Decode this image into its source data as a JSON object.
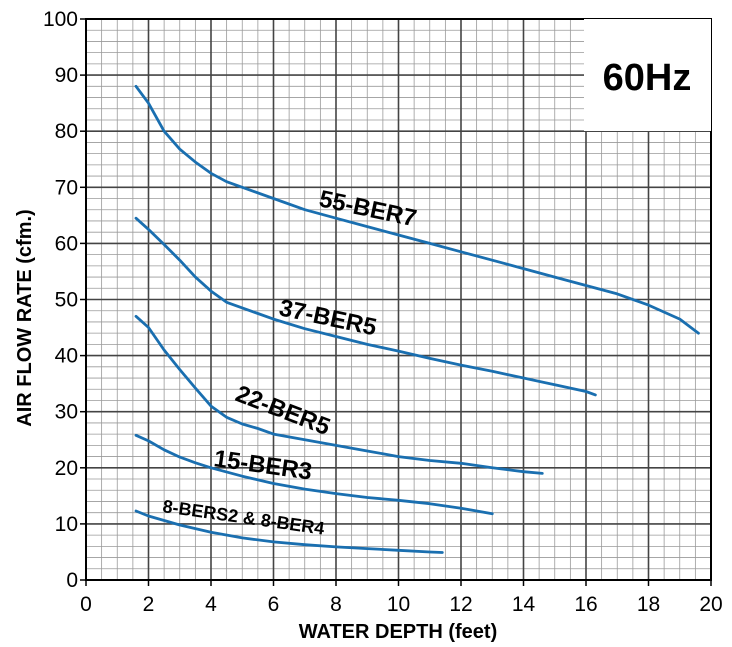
{
  "chart_data": {
    "type": "line",
    "badge": "60Hz",
    "title": "",
    "xlabel": "WATER DEPTH (feet)",
    "ylabel": "AIR FLOW RATE (cfm.)",
    "xlim": [
      0,
      20
    ],
    "ylim": [
      0,
      100
    ],
    "x_ticks": [
      0,
      2,
      4,
      6,
      8,
      10,
      12,
      14,
      16,
      18,
      20
    ],
    "y_ticks": [
      0,
      10,
      20,
      30,
      40,
      50,
      60,
      70,
      80,
      90,
      100
    ],
    "grid": "major every 2 ft / 10 cfm with minor every 0.5 ft / 2 cfm",
    "line_color": "#1a6fb0",
    "series": [
      {
        "name": "55-BER7",
        "x": [
          1.6,
          2.0,
          2.5,
          3.0,
          3.5,
          4.0,
          4.5,
          5.0,
          6.0,
          7.0,
          8.0,
          9.0,
          10.0,
          11.0,
          12.0,
          13.0,
          14.0,
          15.0,
          16.0,
          17.0,
          18.0,
          19.0,
          19.6
        ],
        "y": [
          88.0,
          85.0,
          80.0,
          76.8,
          74.5,
          72.5,
          71.0,
          70.0,
          68.0,
          66.0,
          64.5,
          63.0,
          61.5,
          60.0,
          58.5,
          57.0,
          55.5,
          54.0,
          52.5,
          51.0,
          49.0,
          46.5,
          44.0
        ]
      },
      {
        "name": "37-BER5",
        "x": [
          1.6,
          2.0,
          2.5,
          3.0,
          3.5,
          4.0,
          4.5,
          5.0,
          5.5,
          6.0,
          7.0,
          8.0,
          9.0,
          10.0,
          11.0,
          12.0,
          13.0,
          14.0,
          15.0,
          16.0,
          16.3
        ],
        "y": [
          64.5,
          62.5,
          59.8,
          57.0,
          54.0,
          51.5,
          49.5,
          48.5,
          47.5,
          46.5,
          44.8,
          43.4,
          42.0,
          40.8,
          39.5,
          38.3,
          37.2,
          36.0,
          34.8,
          33.6,
          33.0
        ]
      },
      {
        "name": "22-BER5",
        "x": [
          1.6,
          2.0,
          2.5,
          3.0,
          3.5,
          4.0,
          4.5,
          5.0,
          5.5,
          6.0,
          7.0,
          8.0,
          9.0,
          10.0,
          11.0,
          12.0,
          13.0,
          14.0,
          14.6
        ],
        "y": [
          47.0,
          45.0,
          41.0,
          37.5,
          34.2,
          31.0,
          29.0,
          27.8,
          27.0,
          26.0,
          25.0,
          24.0,
          23.0,
          22.0,
          21.3,
          20.8,
          20.0,
          19.3,
          19.0
        ]
      },
      {
        "name": "15-BER3",
        "x": [
          1.6,
          2.0,
          2.5,
          3.0,
          3.5,
          4.0,
          5.0,
          6.0,
          7.0,
          8.0,
          9.0,
          10.0,
          11.0,
          12.0,
          13.0
        ],
        "y": [
          25.8,
          24.8,
          23.2,
          21.9,
          20.9,
          20.0,
          18.5,
          17.2,
          16.2,
          15.4,
          14.7,
          14.2,
          13.6,
          12.8,
          11.8
        ]
      },
      {
        "name": "8-BERS2 & 8-BER4",
        "x": [
          1.6,
          2.0,
          3.0,
          4.0,
          5.0,
          6.0,
          7.0,
          8.0,
          9.0,
          10.0,
          11.0,
          11.4
        ],
        "y": [
          12.3,
          11.4,
          9.8,
          8.5,
          7.5,
          6.8,
          6.3,
          5.9,
          5.6,
          5.3,
          5.0,
          4.9
        ]
      }
    ]
  }
}
